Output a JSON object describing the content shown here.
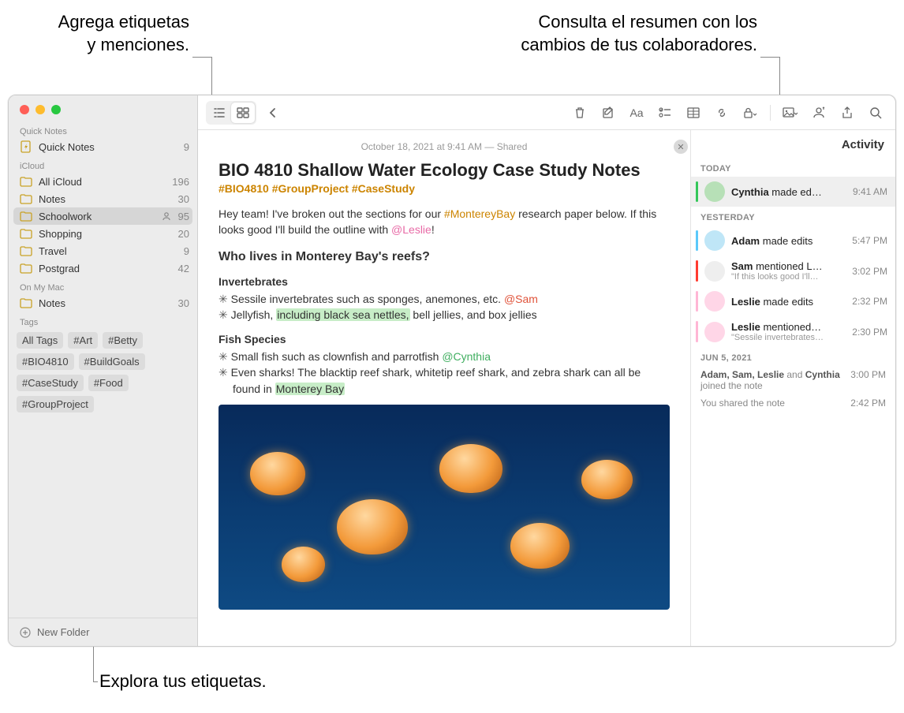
{
  "callouts": {
    "top_left_l1": "Agrega etiquetas",
    "top_left_l2": "y menciones.",
    "top_right_l1": "Consulta el resumen con los",
    "top_right_l2": "cambios de tus colaboradores.",
    "bottom": "Explora tus etiquetas."
  },
  "sidebar": {
    "sections": {
      "quick_notes_header": "Quick Notes",
      "icloud_header": "iCloud",
      "onmymac_header": "On My Mac",
      "tags_header": "Tags"
    },
    "quick_notes": {
      "label": "Quick Notes",
      "count": "9"
    },
    "icloud": [
      {
        "label": "All iCloud",
        "count": "196"
      },
      {
        "label": "Notes",
        "count": "30"
      },
      {
        "label": "Schoolwork",
        "count": "95",
        "shared": true,
        "selected": true
      },
      {
        "label": "Shopping",
        "count": "20"
      },
      {
        "label": "Travel",
        "count": "9"
      },
      {
        "label": "Postgrad",
        "count": "42"
      }
    ],
    "onmymac": [
      {
        "label": "Notes",
        "count": "30"
      }
    ],
    "tags": [
      "All Tags",
      "#Art",
      "#Betty",
      "#BIO4810",
      "#BuildGoals",
      "#CaseStudy",
      "#Food",
      "#GroupProject"
    ],
    "new_folder": "New Folder"
  },
  "note": {
    "meta": "October 18, 2021 at 9:41 AM — Shared",
    "title": "BIO 4810 Shallow Water Ecology Case Study Notes",
    "tags_line": "#BIO4810 #GroupProject #CaseStudy",
    "intro_pre": "Hey team! I've broken out the sections for our ",
    "intro_hash": "#MontereyBay",
    "intro_mid": " research paper below. If this looks good I'll build the outline with ",
    "intro_mention": "@Leslie",
    "intro_post": "!",
    "h2": "Who lives in Monterey Bay's reefs?",
    "h3a": "Invertebrates",
    "li1_pre": "Sessile invertebrates such as sponges, anemones, etc. ",
    "li1_mention": "@Sam",
    "li2_pre": "Jellyfish, ",
    "li2_hl": "including black sea nettles,",
    "li2_post": " bell jellies, and box jellies",
    "h3b": "Fish Species",
    "li3_pre": "Small fish such as clownfish and parrotfish ",
    "li3_mention": "@Cynthia",
    "li4_pre": "Even sharks! The blacktip reef shark, whitetip reef shark, and zebra shark can all be found in ",
    "li4_hl": "Monterey Bay"
  },
  "activity": {
    "title": "Activity",
    "sections": {
      "today": "TODAY",
      "yesterday": "YESTERDAY",
      "jun5": "JUN 5, 2021"
    },
    "today": [
      {
        "name": "Cynthia",
        "text": " made ed…",
        "time": "9:41 AM",
        "bar": "#34c759",
        "avatar": "#b7e0b7"
      }
    ],
    "yesterday": [
      {
        "name": "Adam",
        "text": " made edits",
        "time": "5:47 PM",
        "bar": "#5ac8fa",
        "avatar": "#bfe6f7"
      },
      {
        "name": "Sam",
        "text": " mentioned L…",
        "sub": "\"If this looks good I'll…",
        "time": "3:02 PM",
        "bar": "#ff3b30",
        "avatar": "#eee"
      },
      {
        "name": "Leslie",
        "text": " made edits",
        "time": "2:32 PM",
        "bar": "#ffb6d5",
        "avatar": "#ffd6e7"
      },
      {
        "name": "Leslie",
        "text": " mentioned…",
        "sub": "\"Sessile invertebrates…",
        "time": "2:30 PM",
        "bar": "#ffb6d5",
        "avatar": "#ffd6e7"
      }
    ],
    "jun5": [
      {
        "html_pre": "Adam, Sam, Leslie",
        "html_mid": " and ",
        "html_name2": "Cynthia",
        "html_post": " joined the note",
        "time": "3:00 PM"
      },
      {
        "plain": "You shared the note",
        "time": "2:42 PM"
      }
    ]
  },
  "colors": {
    "folder_icon": "#c9a227",
    "hashtag": "#cc8400"
  }
}
